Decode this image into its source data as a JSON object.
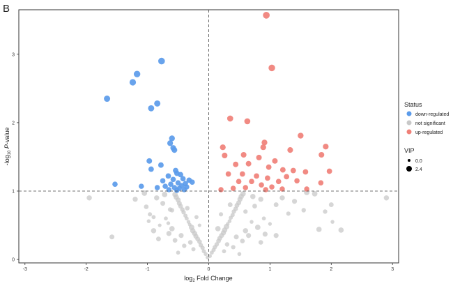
{
  "panel_label": "B",
  "chart_data": {
    "type": "scatter",
    "title": "",
    "xlabel_base": "log",
    "xlabel_sub": "2",
    "xlabel_rest": " Fold Change",
    "ylabel_prefix": "-log",
    "ylabel_sub": "10",
    "ylabel_italic": "P",
    "ylabel_rest": "-value",
    "xlim": [
      -3.1,
      3.1
    ],
    "ylim": [
      -0.05,
      3.65
    ],
    "x_ticks": [
      -3,
      -2,
      -1,
      0,
      1,
      2,
      3
    ],
    "y_ticks": [
      0,
      1,
      2,
      3
    ],
    "grid": false,
    "thresholds": {
      "vline_x": 0,
      "hline_y": 1
    },
    "legend": {
      "status_title": "Status",
      "status_items": [
        {
          "label": "down-regulated",
          "color": "#5b9bea"
        },
        {
          "label": "not significant",
          "color": "#c8c8c8"
        },
        {
          "label": "up-regulated",
          "color": "#f08078"
        }
      ],
      "vip_title": "VIP",
      "vip_items": [
        {
          "label": "0.0",
          "size": 0.0
        },
        {
          "label": "2.4",
          "size": 2.4
        }
      ],
      "placement": "right"
    },
    "series": [
      {
        "name": "down-regulated",
        "color": "#5b9bea",
        "points": [
          [
            -0.77,
            2.9
          ],
          [
            -1.17,
            2.71
          ],
          [
            -1.24,
            2.59
          ],
          [
            -1.66,
            2.35
          ],
          [
            -0.84,
            2.28
          ],
          [
            -0.94,
            2.21
          ],
          [
            -0.6,
            1.77
          ],
          [
            -0.63,
            1.7
          ],
          [
            -0.58,
            1.63
          ],
          [
            -0.56,
            1.6
          ],
          [
            -0.97,
            1.44
          ],
          [
            -0.78,
            1.38
          ],
          [
            -0.94,
            1.32
          ],
          [
            -0.54,
            1.3
          ],
          [
            -0.52,
            1.26
          ],
          [
            -0.46,
            1.24
          ],
          [
            -0.66,
            1.22
          ],
          [
            -0.58,
            1.17
          ],
          [
            -0.32,
            1.16
          ],
          [
            -0.42,
            1.18
          ],
          [
            -0.75,
            1.15
          ],
          [
            -0.5,
            1.12
          ],
          [
            -0.62,
            1.1
          ],
          [
            -0.38,
            1.11
          ],
          [
            -0.44,
            1.08
          ],
          [
            -0.71,
            1.07
          ],
          [
            -0.56,
            1.05
          ],
          [
            -0.48,
            1.04
          ],
          [
            -0.36,
            1.06
          ],
          [
            -0.27,
            1.13
          ],
          [
            -0.65,
            1.02
          ],
          [
            -0.52,
            1.01
          ],
          [
            -1.53,
            1.1
          ],
          [
            -1.1,
            1.07
          ],
          [
            -0.84,
            1.05
          ],
          [
            -0.4,
            1.02
          ]
        ]
      },
      {
        "name": "up-regulated",
        "color": "#f08078",
        "points": [
          [
            0.94,
            3.57
          ],
          [
            1.03,
            2.8
          ],
          [
            0.35,
            2.06
          ],
          [
            0.63,
            2.02
          ],
          [
            1.5,
            1.81
          ],
          [
            0.91,
            1.71
          ],
          [
            0.89,
            1.64
          ],
          [
            0.23,
            1.64
          ],
          [
            1.91,
            1.65
          ],
          [
            1.33,
            1.6
          ],
          [
            0.57,
            1.53
          ],
          [
            0.26,
            1.52
          ],
          [
            1.84,
            1.53
          ],
          [
            0.82,
            1.49
          ],
          [
            1.08,
            1.44
          ],
          [
            0.65,
            1.4
          ],
          [
            0.44,
            1.39
          ],
          [
            0.98,
            1.35
          ],
          [
            1.21,
            1.31
          ],
          [
            1.38,
            1.3
          ],
          [
            1.58,
            1.28
          ],
          [
            1.97,
            1.29
          ],
          [
            0.32,
            1.25
          ],
          [
            0.55,
            1.25
          ],
          [
            0.78,
            1.22
          ],
          [
            0.96,
            1.19
          ],
          [
            1.27,
            1.21
          ],
          [
            0.49,
            1.14
          ],
          [
            0.7,
            1.14
          ],
          [
            1.14,
            1.14
          ],
          [
            1.44,
            1.15
          ],
          [
            1.83,
            1.12
          ],
          [
            0.86,
            1.09
          ],
          [
            1.03,
            1.06
          ],
          [
            0.6,
            1.05
          ],
          [
            0.4,
            1.04
          ],
          [
            1.2,
            1.03
          ],
          [
            0.93,
            1.02
          ],
          [
            0.2,
            1.02
          ],
          [
            1.6,
            1.03
          ]
        ]
      },
      {
        "name": "not significant",
        "color": "#c8c8c8",
        "points": [
          [
            -1.95,
            0.9
          ],
          [
            -1.58,
            0.33
          ],
          [
            2.9,
            0.9
          ],
          [
            2.02,
            0.55
          ],
          [
            2.16,
            0.43
          ],
          [
            1.8,
            0.44
          ],
          [
            2.0,
            0.8
          ],
          [
            1.73,
            0.96
          ],
          [
            1.1,
            0.8
          ],
          [
            1.3,
            0.67
          ],
          [
            0.92,
            0.37
          ],
          [
            1.1,
            0.35
          ],
          [
            -1.02,
            0.77
          ],
          [
            -0.98,
            0.56
          ],
          [
            -0.96,
            0.66
          ],
          [
            -1.05,
            0.97
          ],
          [
            -0.63,
            0.73
          ],
          [
            -0.66,
            0.53
          ],
          [
            -0.02,
            0.03
          ],
          [
            0.02,
            0.05
          ],
          [
            -0.05,
            0.08
          ],
          [
            0.05,
            0.1
          ],
          [
            -0.08,
            0.12
          ],
          [
            0.08,
            0.14
          ],
          [
            -0.1,
            0.17
          ],
          [
            0.1,
            0.18
          ],
          [
            -0.13,
            0.21
          ],
          [
            0.13,
            0.22
          ],
          [
            -0.15,
            0.26
          ],
          [
            0.16,
            0.27
          ],
          [
            -0.18,
            0.3
          ],
          [
            0.18,
            0.31
          ],
          [
            -0.21,
            0.34
          ],
          [
            0.21,
            0.35
          ],
          [
            -0.23,
            0.38
          ],
          [
            0.24,
            0.39
          ],
          [
            -0.26,
            0.42
          ],
          [
            0.26,
            0.43
          ],
          [
            -0.28,
            0.47
          ],
          [
            0.29,
            0.48
          ],
          [
            -0.31,
            0.51
          ],
          [
            0.31,
            0.52
          ],
          [
            -0.33,
            0.55
          ],
          [
            0.34,
            0.56
          ],
          [
            -0.36,
            0.6
          ],
          [
            0.36,
            0.61
          ],
          [
            -0.38,
            0.64
          ],
          [
            0.39,
            0.65
          ],
          [
            -0.41,
            0.69
          ],
          [
            0.41,
            0.7
          ],
          [
            -0.43,
            0.73
          ],
          [
            0.44,
            0.74
          ],
          [
            -0.46,
            0.78
          ],
          [
            0.46,
            0.79
          ],
          [
            -0.48,
            0.82
          ],
          [
            0.49,
            0.83
          ],
          [
            -0.5,
            0.87
          ],
          [
            0.51,
            0.88
          ],
          [
            -0.53,
            0.91
          ],
          [
            0.53,
            0.92
          ],
          [
            -0.55,
            0.95
          ],
          [
            0.56,
            0.96
          ],
          [
            -0.3,
            0.25
          ],
          [
            0.3,
            0.22
          ],
          [
            -0.45,
            0.35
          ],
          [
            0.45,
            0.33
          ],
          [
            -0.6,
            0.45
          ],
          [
            0.6,
            0.42
          ],
          [
            -0.7,
            0.6
          ],
          [
            0.7,
            0.55
          ],
          [
            -0.75,
            0.82
          ],
          [
            0.75,
            0.78
          ],
          [
            -0.85,
            0.9
          ],
          [
            0.85,
            0.88
          ],
          [
            -0.4,
            0.2
          ],
          [
            0.4,
            0.18
          ],
          [
            -0.55,
            0.28
          ],
          [
            0.55,
            0.27
          ],
          [
            -0.65,
            0.38
          ],
          [
            0.65,
            0.35
          ],
          [
            -0.8,
            0.5
          ],
          [
            0.8,
            0.47
          ],
          [
            -0.9,
            0.62
          ],
          [
            0.9,
            0.6
          ],
          [
            -0.25,
            0.15
          ],
          [
            0.25,
            0.12
          ],
          [
            -0.35,
            0.75
          ],
          [
            0.35,
            0.8
          ],
          [
            -0.2,
            0.62
          ],
          [
            0.2,
            0.66
          ],
          [
            -0.15,
            0.5
          ],
          [
            0.15,
            0.45
          ],
          [
            -0.6,
            0.72
          ],
          [
            0.6,
            0.7
          ],
          [
            -0.72,
            0.95
          ],
          [
            0.72,
            0.92
          ],
          [
            1.2,
            0.9
          ],
          [
            1.4,
            0.85
          ],
          [
            1.55,
            0.72
          ],
          [
            1.9,
            0.7
          ],
          [
            -1.2,
            0.88
          ],
          [
            -0.9,
            0.42
          ],
          [
            1.0,
            0.52
          ],
          [
            0.85,
            0.25
          ],
          [
            -0.82,
            0.3
          ],
          [
            -0.5,
            0.1
          ],
          [
            0.5,
            0.08
          ],
          [
            1.6,
            0.98
          ]
        ]
      }
    ]
  }
}
